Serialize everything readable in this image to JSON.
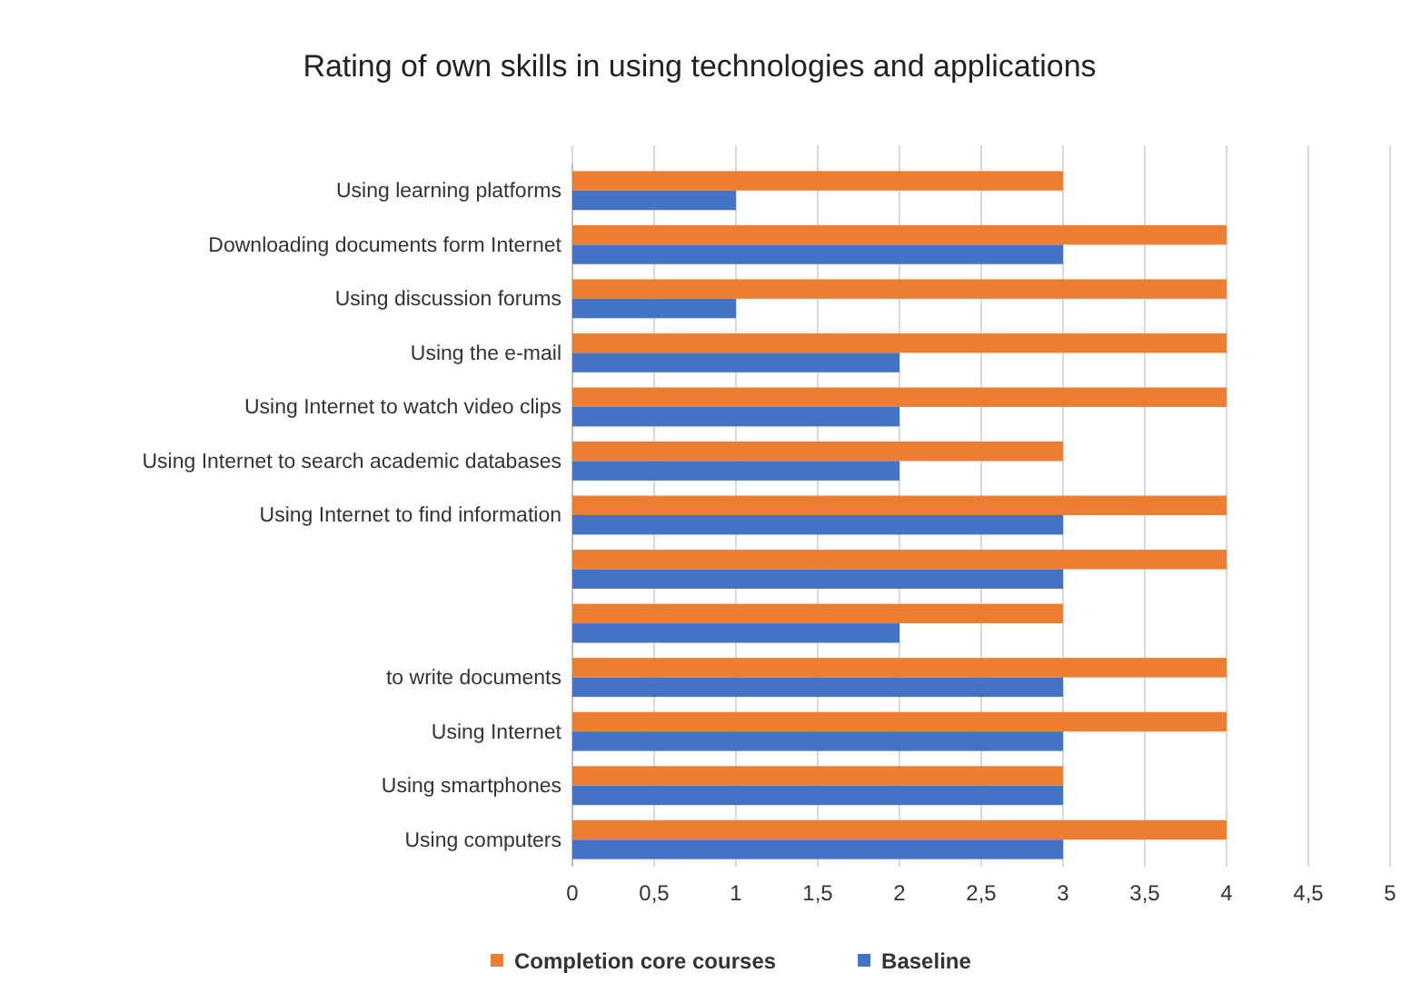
{
  "chart_data": {
    "type": "bar",
    "orientation": "horizontal",
    "title": "Rating of own skills in using technologies and applications",
    "categories": [
      "Using learning platforms",
      "Downloading documents form Internet",
      "Using discussion forums",
      "Using the e-mail",
      "Using Internet to watch video clips",
      "Using Internet to search academic databases",
      "Using Internet to find information",
      null,
      null,
      "to write documents",
      "Using Internet",
      "Using smartphones",
      "Using computers"
    ],
    "series": [
      {
        "name": "Completion core courses",
        "color": "#ed7d31",
        "values": [
          3,
          4,
          4,
          4,
          4,
          3,
          4,
          4,
          3,
          4,
          4,
          3,
          4
        ]
      },
      {
        "name": "Baseline",
        "color": "#4472c4",
        "values": [
          1,
          3,
          1,
          2,
          2,
          2,
          3,
          3,
          2,
          3,
          3,
          3,
          3
        ]
      }
    ],
    "xlim": [
      0,
      5
    ],
    "xticks": [
      0,
      {
        "value": 0.5,
        "label": "0,5"
      },
      1,
      {
        "value": 1.5,
        "label": "1,5"
      },
      2,
      {
        "value": 2.5,
        "label": "2,5"
      },
      3,
      {
        "value": 3.5,
        "label": "3,5"
      },
      4,
      {
        "value": 4.5,
        "label": "4,5"
      },
      5
    ],
    "grid": "x",
    "legend": "bottom"
  }
}
